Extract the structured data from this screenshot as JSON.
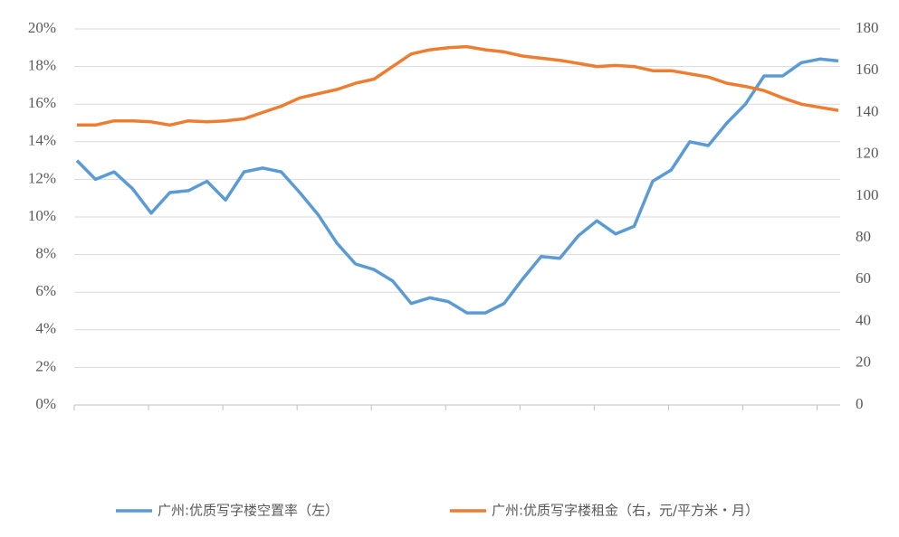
{
  "chart_data": {
    "type": "line",
    "categories": [
      null,
      null,
      null,
      null,
      null,
      null,
      null,
      null,
      null,
      null,
      null,
      null,
      null,
      null,
      null,
      null,
      null,
      null,
      null,
      null,
      null,
      null,
      null,
      null,
      null,
      null,
      null,
      null,
      null,
      null,
      null,
      null,
      null,
      null,
      null,
      null,
      null,
      null,
      null,
      null,
      null,
      null
    ],
    "series": [
      {
        "name": "广州:优质写字楼空置率（左）",
        "color": "#5b9bd5",
        "values": [
          13.0,
          12.0,
          12.4,
          11.5,
          10.2,
          11.3,
          11.4,
          11.9,
          10.9,
          12.4,
          12.6,
          12.4,
          11.3,
          10.1,
          8.6,
          7.5,
          7.2,
          6.6,
          5.4,
          5.7,
          5.5,
          4.9,
          4.9,
          5.4,
          6.7,
          7.9,
          7.8,
          9.0,
          9.8,
          9.1,
          9.5,
          11.9,
          12.5,
          14.0,
          13.8,
          15.0,
          16.0,
          17.5,
          17.5,
          18.2,
          18.4,
          18.3
        ]
      },
      {
        "name": "广州:优质写字楼租金（右，元/平方米・月）",
        "color": "#ed7d31",
        "axis": "y2",
        "values": [
          134,
          134,
          136,
          136,
          135.5,
          134,
          136,
          135.5,
          136,
          137,
          140,
          143,
          147,
          149,
          151,
          154,
          156,
          162,
          168,
          170,
          171,
          171.5,
          170,
          169,
          167,
          166,
          165,
          163.5,
          162,
          162.5,
          162,
          160,
          160,
          158.5,
          157,
          154,
          152.5,
          150.5,
          147,
          144,
          142.5,
          141
        ]
      }
    ],
    "ylim": [
      0,
      20
    ],
    "yticks": [
      {
        "value": 0,
        "label": "0%"
      },
      {
        "value": 2,
        "label": "2%"
      },
      {
        "value": 4,
        "label": "4%"
      },
      {
        "value": 6,
        "label": "6%"
      },
      {
        "value": 8,
        "label": "8%"
      },
      {
        "value": 10,
        "label": "10%"
      },
      {
        "value": 12,
        "label": "12%"
      },
      {
        "value": 14,
        "label": "14%"
      },
      {
        "value": 16,
        "label": "16%"
      },
      {
        "value": 18,
        "label": "18%"
      },
      {
        "value": 20,
        "label": "20%"
      }
    ],
    "y2lim": [
      0,
      180
    ],
    "y2ticks": [
      0,
      20,
      40,
      60,
      80,
      100,
      120,
      140,
      160,
      180
    ],
    "grid": true,
    "legend": "bottom"
  }
}
